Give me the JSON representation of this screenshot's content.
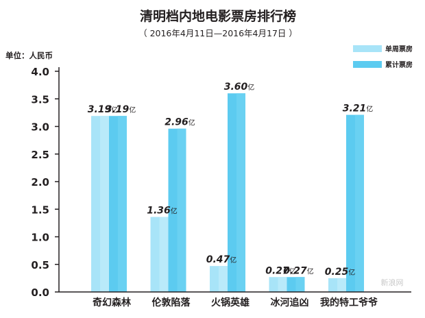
{
  "chart_data": {
    "type": "bar",
    "title": "清明档内地电影票房排行榜",
    "subtitle": "（ 2016年4月11日—2016年4月17日 ）",
    "unit_label": "单位：人民币",
    "categories": [
      "奇幻森林",
      "伦敦陷落",
      "火锅英雄",
      "冰河追凶",
      "我的特工爷爷"
    ],
    "series": [
      {
        "name": "单周票房",
        "color": "#a8e4f8",
        "values": [
          3.19,
          1.36,
          0.47,
          0.27,
          0.25
        ],
        "labels": [
          "3.19亿",
          "1.36亿",
          "0.47亿",
          "0.27亿",
          "0.25亿"
        ]
      },
      {
        "name": "累计票房",
        "color": "#5ccbf0",
        "values": [
          3.19,
          2.96,
          3.6,
          0.27,
          3.21
        ],
        "labels": [
          "3.19亿",
          "2.96亿",
          "3.60亿",
          "0.27亿",
          "3.21亿"
        ]
      }
    ],
    "ylim": [
      0,
      4.0
    ],
    "yticks": [
      "0.0",
      "0.5",
      "1.0",
      "1.5",
      "2.0",
      "2.5",
      "3.0",
      "3.5",
      "4.0"
    ],
    "grid": false,
    "legend_position": "top-right"
  },
  "watermark": "新浪网"
}
